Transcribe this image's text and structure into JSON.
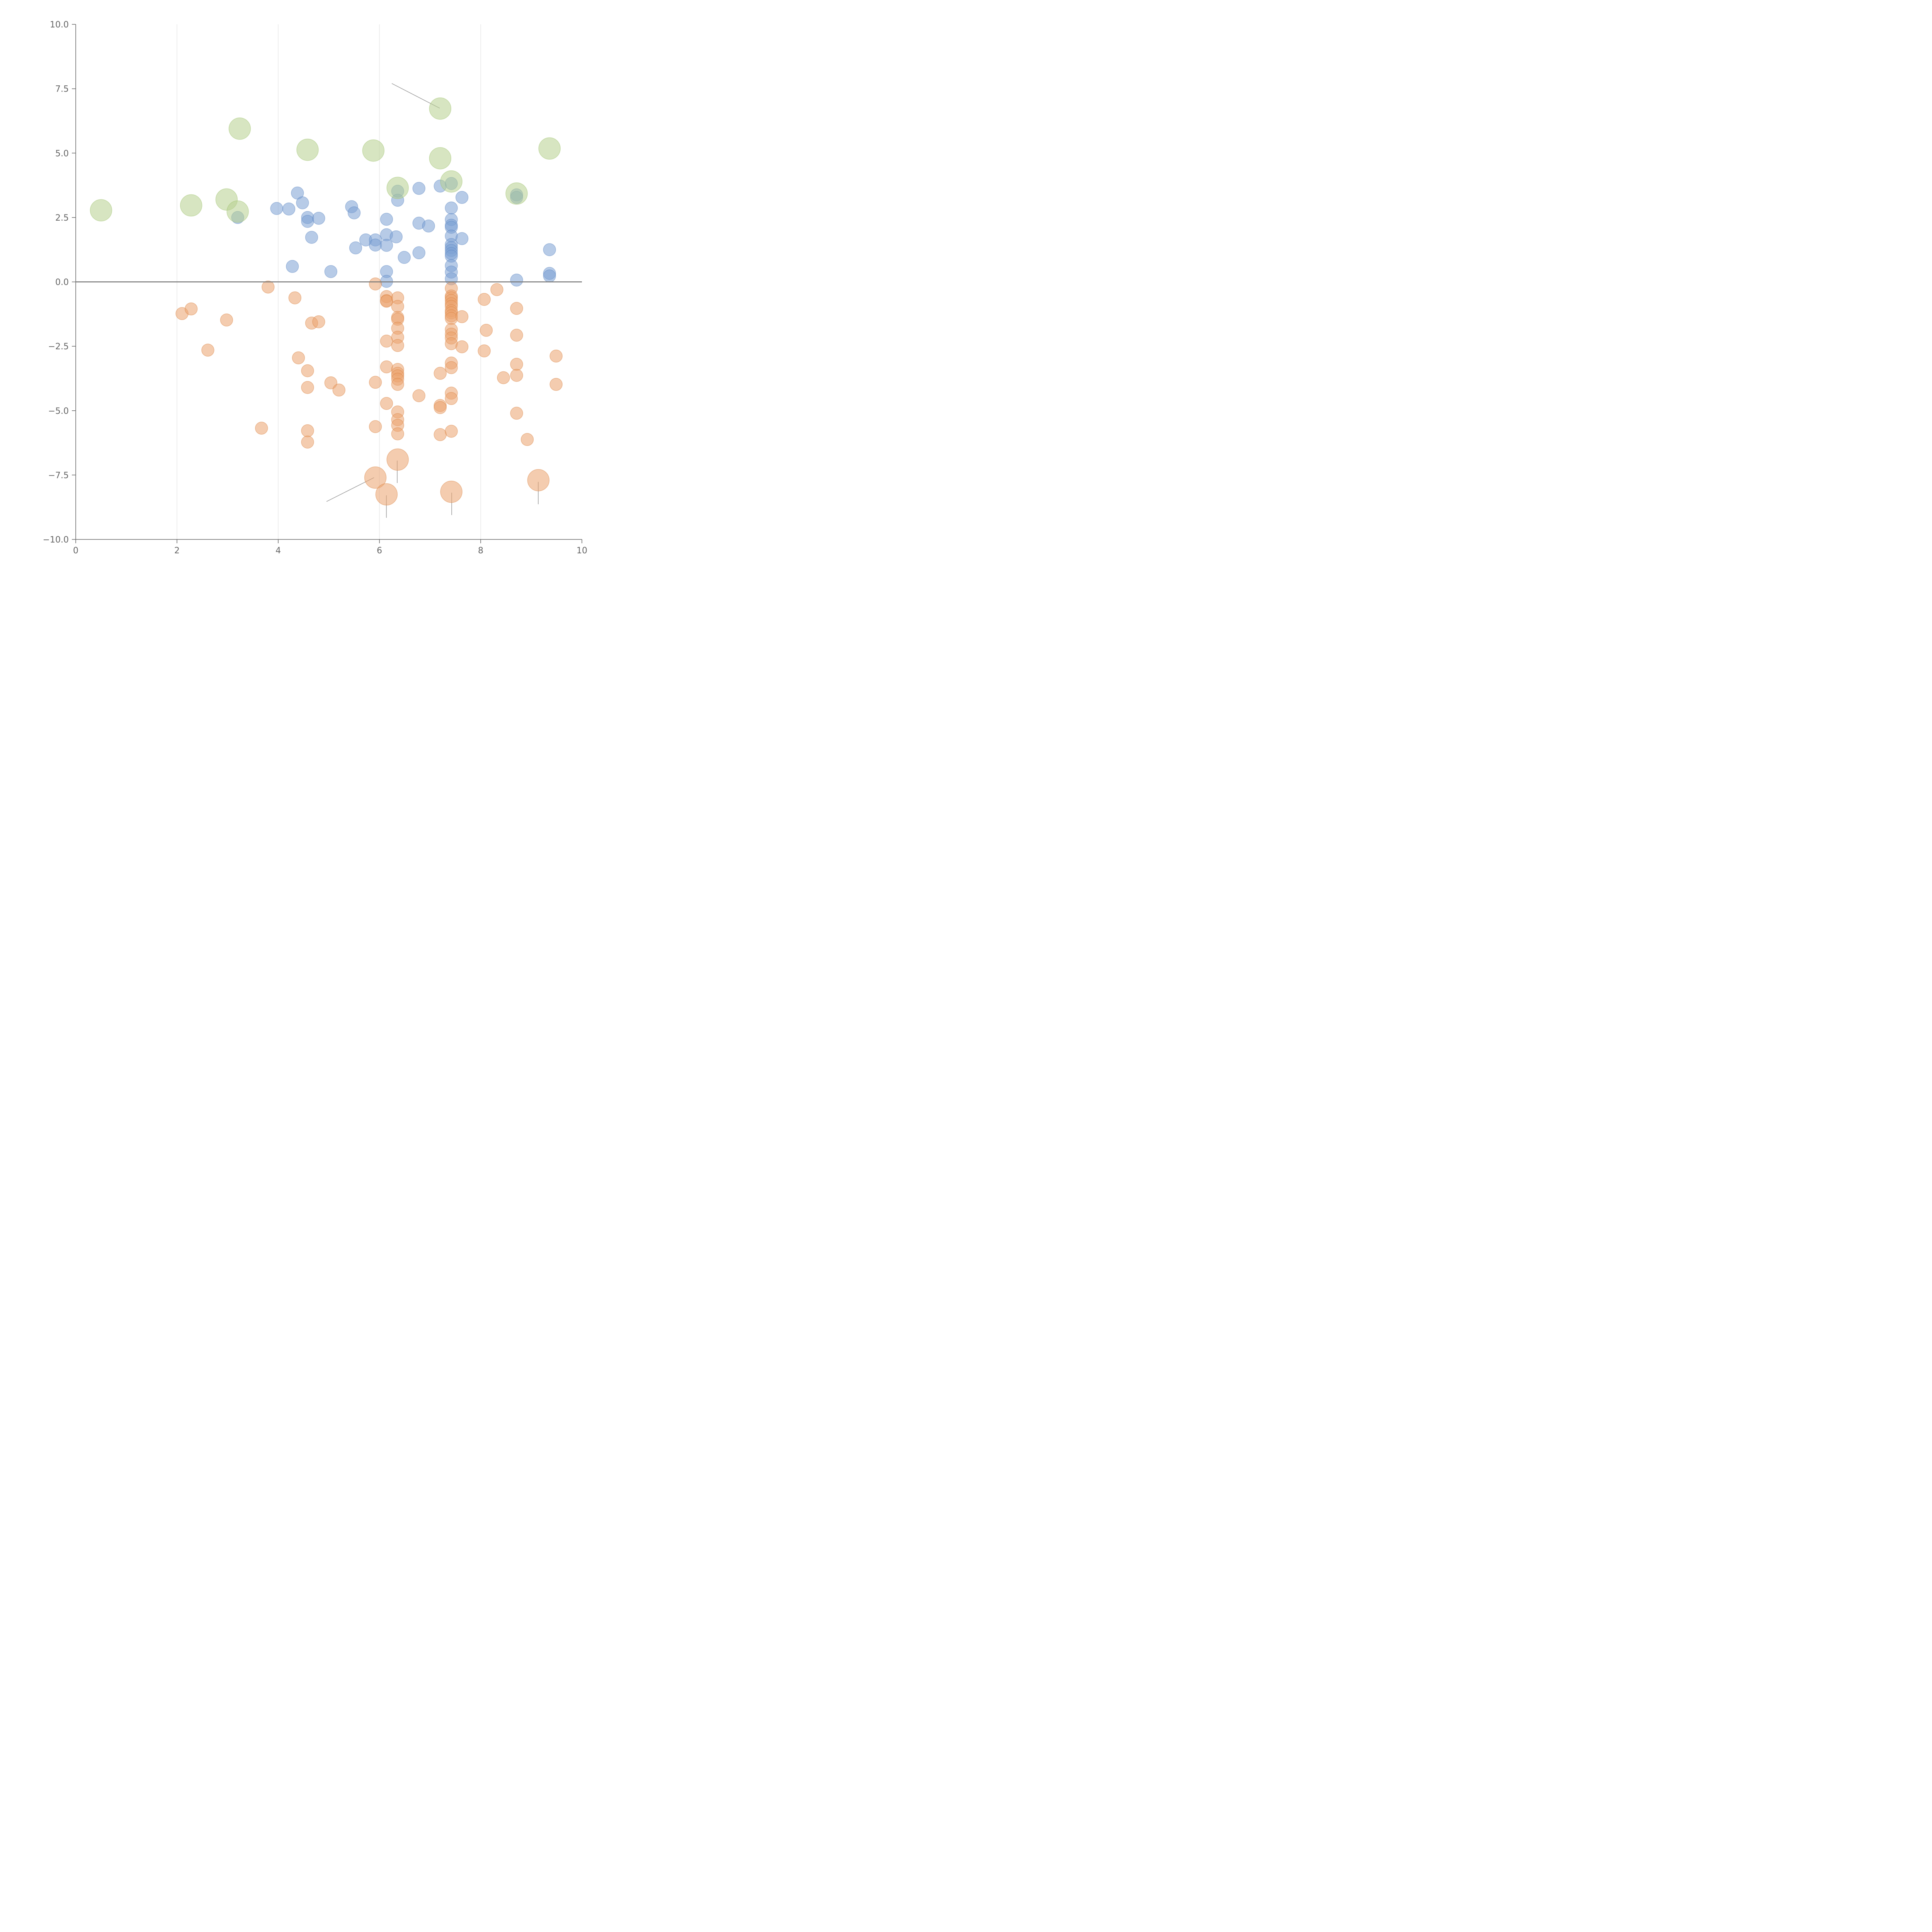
{
  "chart_data": {
    "type": "scatter",
    "title": "",
    "xlabel": "",
    "ylabel": "",
    "xlim": [
      0,
      10
    ],
    "ylim": [
      -10,
      10
    ],
    "grid": "vertical",
    "reference_line_y": 0,
    "x_ticks": [
      0,
      2,
      4,
      6,
      8,
      10
    ],
    "x_tick_labels": [
      "0",
      "2",
      "4",
      "6",
      "8",
      "10"
    ],
    "y_ticks": [
      -10,
      -7.5,
      -5,
      -2.5,
      0,
      2.5,
      5,
      7.5,
      10
    ],
    "y_tick_labels": [
      "−10.0",
      "−7.5",
      "−5.0",
      "−2.5",
      "0.0",
      "2.5",
      "5.0",
      "7.5",
      "10.0"
    ],
    "series": [
      {
        "name": "blue",
        "color": "#7ba0d3",
        "stroke": "#5a84c2",
        "size": 1,
        "points": [
          [
            3.2,
            2.5
          ],
          [
            3.97,
            2.85
          ],
          [
            4.21,
            2.83
          ],
          [
            4.38,
            3.45
          ],
          [
            4.48,
            3.07
          ],
          [
            4.58,
            2.5
          ],
          [
            4.58,
            2.35
          ],
          [
            4.66,
            1.73
          ],
          [
            4.8,
            2.47
          ],
          [
            4.28,
            0.6
          ],
          [
            5.04,
            0.4
          ],
          [
            5.45,
            2.92
          ],
          [
            5.5,
            2.68
          ],
          [
            5.53,
            1.32
          ],
          [
            5.73,
            1.63
          ],
          [
            5.92,
            1.63
          ],
          [
            5.92,
            1.43
          ],
          [
            6.14,
            2.43
          ],
          [
            6.14,
            1.83
          ],
          [
            6.14,
            1.42
          ],
          [
            6.14,
            0.4
          ],
          [
            6.14,
            0.02
          ],
          [
            6.33,
            1.75
          ],
          [
            6.36,
            3.52
          ],
          [
            6.36,
            3.17
          ],
          [
            6.49,
            0.95
          ],
          [
            6.78,
            3.63
          ],
          [
            6.78,
            2.28
          ],
          [
            6.78,
            1.13
          ],
          [
            6.97,
            2.17
          ],
          [
            7.2,
            3.72
          ],
          [
            7.42,
            3.82
          ],
          [
            7.42,
            2.87
          ],
          [
            7.42,
            2.42
          ],
          [
            7.42,
            2.2
          ],
          [
            7.42,
            2.12
          ],
          [
            7.42,
            1.78
          ],
          [
            7.42,
            1.45
          ],
          [
            7.42,
            1.33
          ],
          [
            7.42,
            1.22
          ],
          [
            7.42,
            1.1
          ],
          [
            7.42,
            1.0
          ],
          [
            7.42,
            0.63
          ],
          [
            7.42,
            0.38
          ],
          [
            7.42,
            0.12
          ],
          [
            7.63,
            3.28
          ],
          [
            7.63,
            1.68
          ],
          [
            8.71,
            3.38
          ],
          [
            8.71,
            3.28
          ],
          [
            8.71,
            0.07
          ],
          [
            9.36,
            1.25
          ],
          [
            9.36,
            0.33
          ],
          [
            9.36,
            0.23
          ]
        ]
      },
      {
        "name": "orange",
        "color": "#eba36e",
        "stroke": "#d9813f",
        "size": 1,
        "points": [
          [
            2.1,
            -1.23
          ],
          [
            2.28,
            -1.05
          ],
          [
            2.98,
            -1.48
          ],
          [
            2.61,
            -2.65
          ],
          [
            3.67,
            -5.68
          ],
          [
            3.8,
            -0.2
          ],
          [
            4.33,
            -0.62
          ],
          [
            4.4,
            -2.95
          ],
          [
            4.66,
            -1.6
          ],
          [
            4.8,
            -1.55
          ],
          [
            4.58,
            -3.45
          ],
          [
            4.58,
            -4.1
          ],
          [
            4.58,
            -5.78
          ],
          [
            4.58,
            -6.22
          ],
          [
            5.04,
            -3.92
          ],
          [
            5.2,
            -4.2
          ],
          [
            5.92,
            -0.08
          ],
          [
            5.92,
            -3.9
          ],
          [
            5.92,
            -5.62
          ],
          [
            6.14,
            -0.57
          ],
          [
            6.14,
            -0.73
          ],
          [
            6.14,
            -0.75
          ],
          [
            6.14,
            -2.3
          ],
          [
            6.14,
            -3.3
          ],
          [
            6.14,
            -4.72
          ],
          [
            6.36,
            -0.62
          ],
          [
            6.36,
            -0.95
          ],
          [
            6.36,
            -1.38
          ],
          [
            6.36,
            -1.45
          ],
          [
            6.36,
            -1.8
          ],
          [
            6.36,
            -2.15
          ],
          [
            6.36,
            -2.47
          ],
          [
            6.36,
            -3.4
          ],
          [
            6.36,
            -3.55
          ],
          [
            6.36,
            -3.65
          ],
          [
            6.36,
            -3.78
          ],
          [
            6.36,
            -3.98
          ],
          [
            6.36,
            -5.05
          ],
          [
            6.36,
            -5.35
          ],
          [
            6.36,
            -5.57
          ],
          [
            6.36,
            -5.9
          ],
          [
            6.78,
            -4.42
          ],
          [
            7.2,
            -3.55
          ],
          [
            7.2,
            -4.8
          ],
          [
            7.2,
            -4.88
          ],
          [
            7.2,
            -5.93
          ],
          [
            7.42,
            -0.25
          ],
          [
            7.42,
            -0.55
          ],
          [
            7.42,
            -0.62
          ],
          [
            7.42,
            -0.72
          ],
          [
            7.42,
            -0.85
          ],
          [
            7.42,
            -0.95
          ],
          [
            7.42,
            -1.12
          ],
          [
            7.42,
            -1.2
          ],
          [
            7.42,
            -1.32
          ],
          [
            7.42,
            -1.42
          ],
          [
            7.42,
            -1.85
          ],
          [
            7.42,
            -2.03
          ],
          [
            7.42,
            -2.18
          ],
          [
            7.42,
            -2.4
          ],
          [
            7.42,
            -3.15
          ],
          [
            7.42,
            -3.33
          ],
          [
            7.42,
            -4.32
          ],
          [
            7.42,
            -4.53
          ],
          [
            7.42,
            -5.8
          ],
          [
            7.63,
            -1.35
          ],
          [
            7.63,
            -2.52
          ],
          [
            8.07,
            -0.68
          ],
          [
            8.07,
            -2.68
          ],
          [
            8.11,
            -1.88
          ],
          [
            8.32,
            -0.3
          ],
          [
            8.45,
            -3.72
          ],
          [
            8.71,
            -1.03
          ],
          [
            8.71,
            -2.07
          ],
          [
            8.71,
            -3.2
          ],
          [
            8.71,
            -3.63
          ],
          [
            8.71,
            -5.1
          ],
          [
            8.92,
            -6.12
          ],
          [
            9.49,
            -2.88
          ],
          [
            9.49,
            -3.98
          ]
        ]
      },
      {
        "name": "orange-large",
        "color": "#eba36e",
        "stroke": "#d9813f",
        "size": 2,
        "points": [
          [
            5.92,
            -7.6
          ],
          [
            6.14,
            -8.25
          ],
          [
            6.36,
            -6.9
          ],
          [
            7.42,
            -8.15
          ],
          [
            9.14,
            -7.7
          ]
        ]
      },
      {
        "name": "green",
        "color": "#b6d08e",
        "stroke": "#9cc068",
        "size": 2,
        "points": [
          [
            0.5,
            2.78
          ],
          [
            2.28,
            2.97
          ],
          [
            2.98,
            3.2
          ],
          [
            3.2,
            2.73
          ],
          [
            3.24,
            5.95
          ],
          [
            4.58,
            5.13
          ],
          [
            5.88,
            5.1
          ],
          [
            6.36,
            3.65
          ],
          [
            7.2,
            6.73
          ],
          [
            7.2,
            4.8
          ],
          [
            7.42,
            3.9
          ],
          [
            8.71,
            3.43
          ],
          [
            9.36,
            5.18
          ]
        ]
      }
    ]
  }
}
